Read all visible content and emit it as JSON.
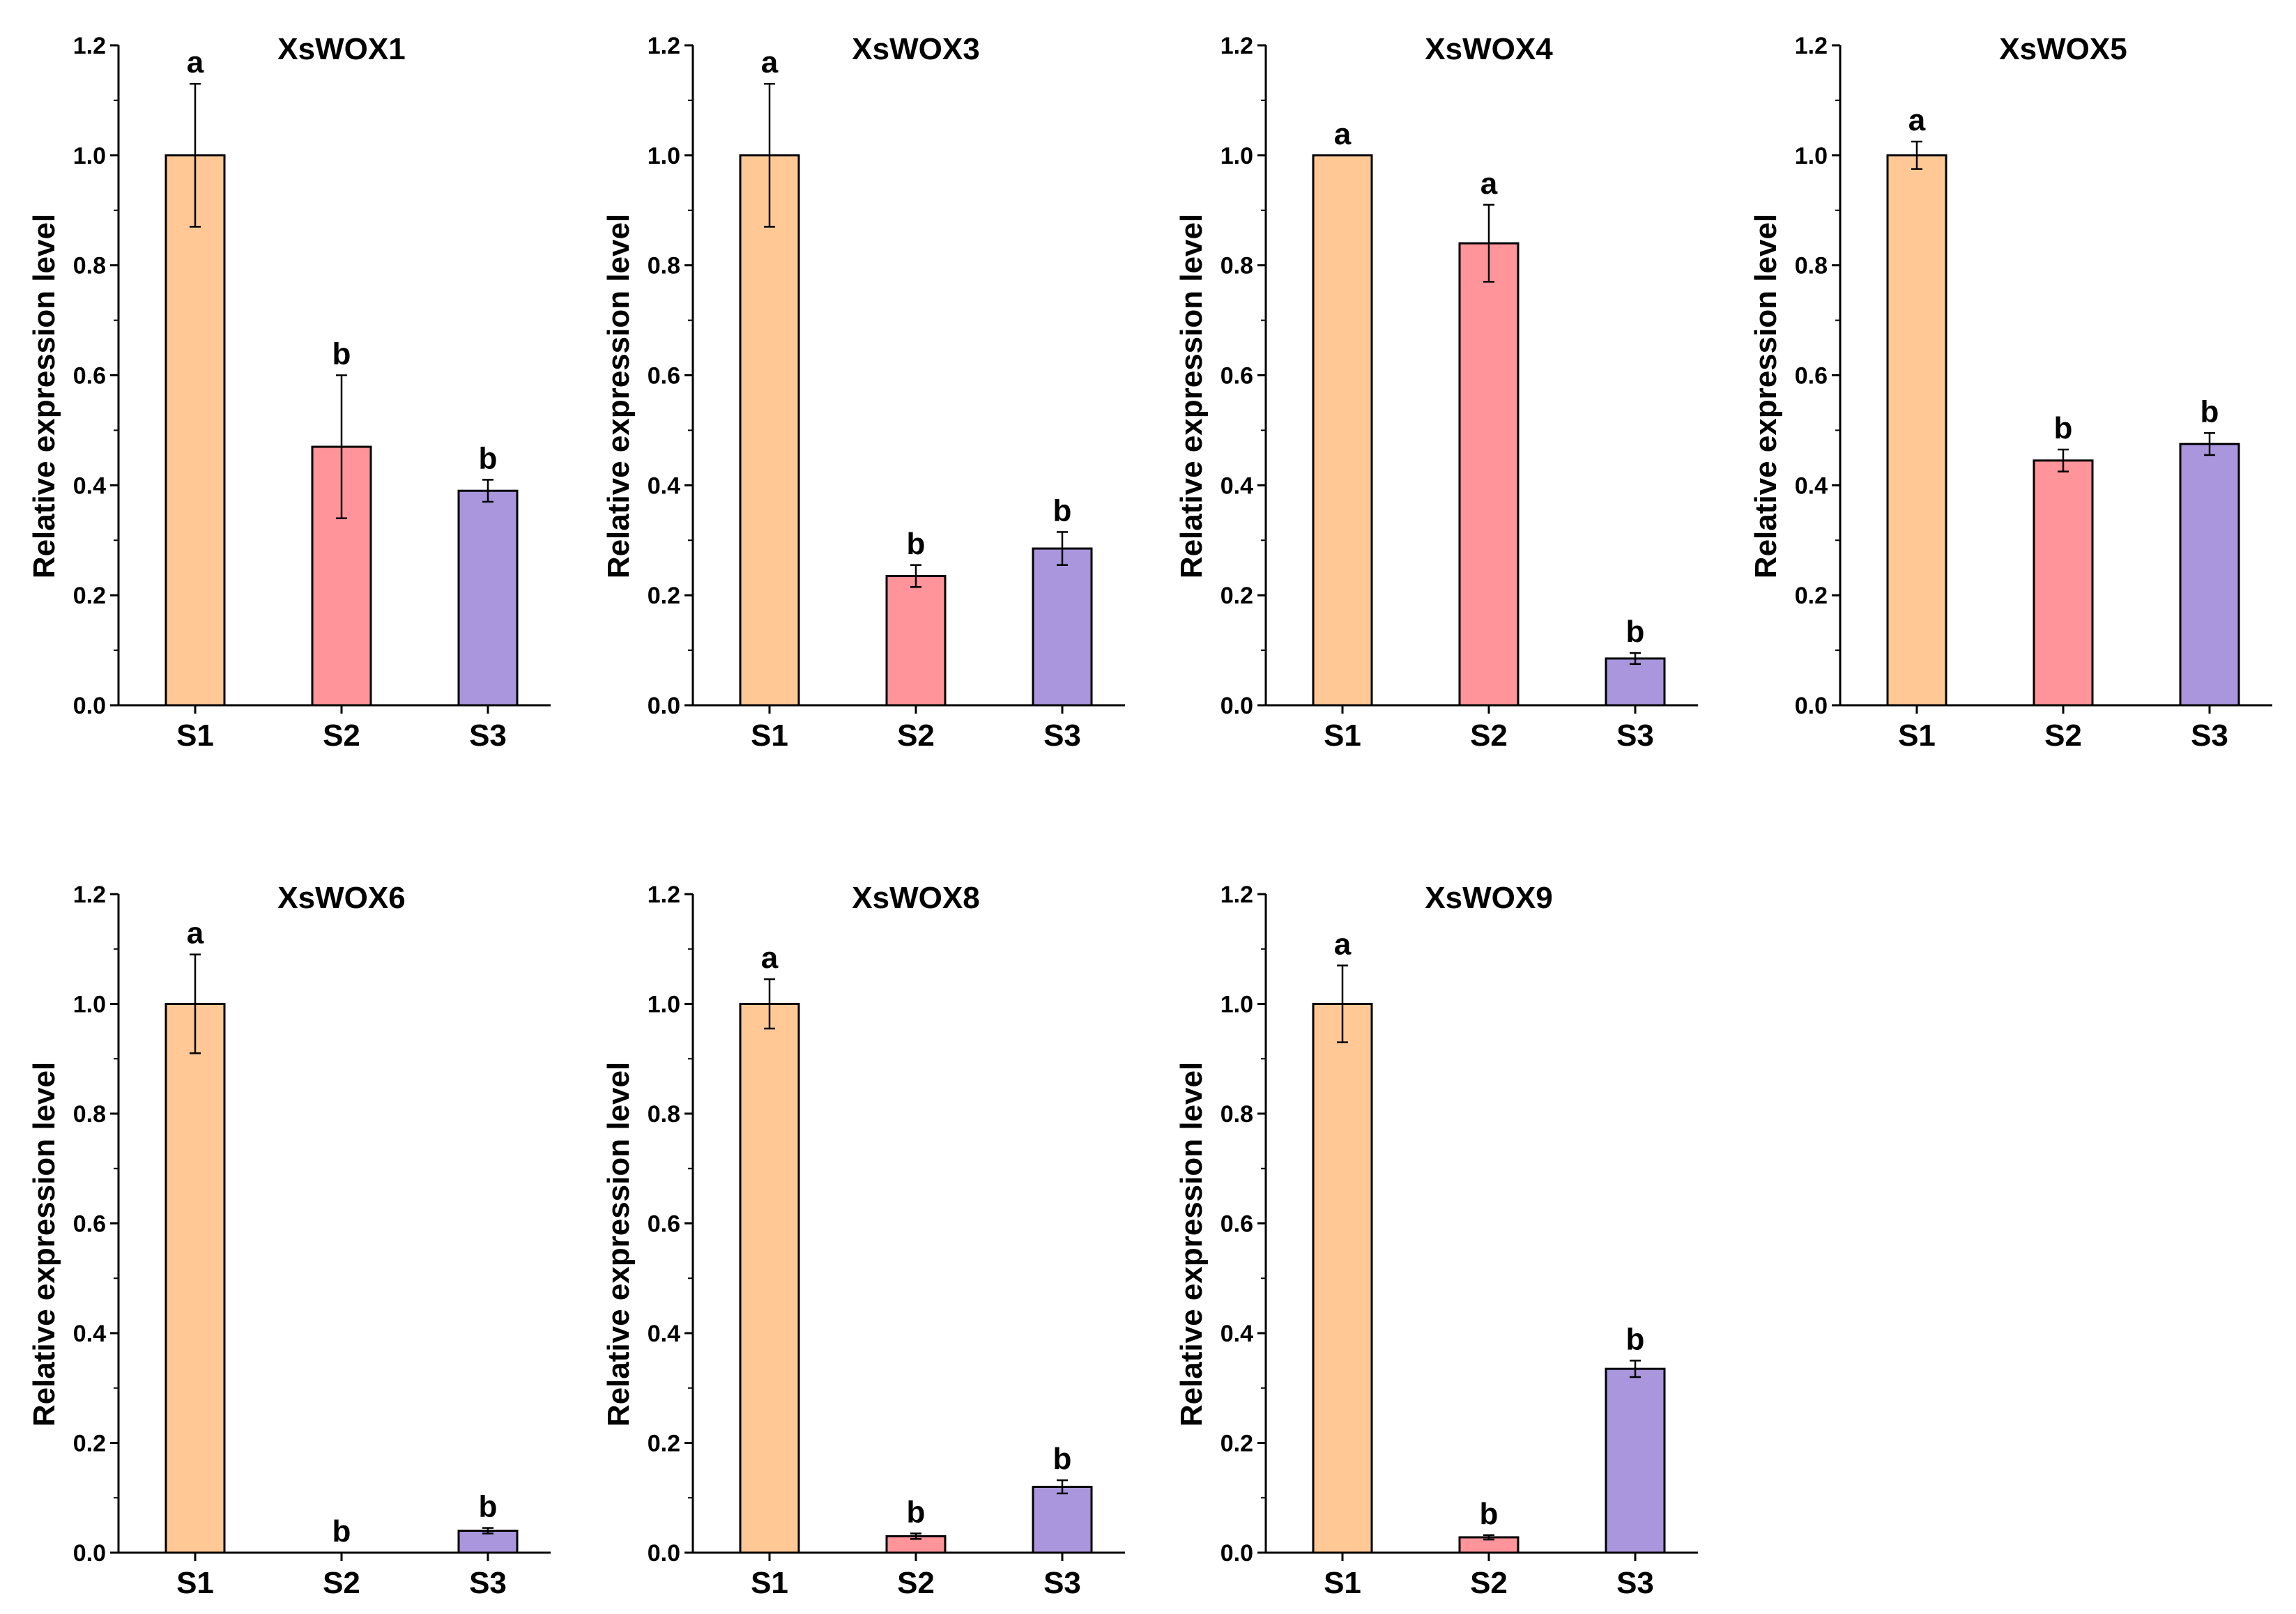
{
  "colors": {
    "S1": "#FFC895",
    "S2": "#FF949A",
    "S3": "#A996DC"
  },
  "chart_data": [
    {
      "type": "bar",
      "title": "XsWOX1",
      "ylabel": "Relative expression level",
      "xlabel": "",
      "categories": [
        "S1",
        "S2",
        "S3"
      ],
      "ylim": [
        0,
        1.2
      ],
      "yticks": [
        "0.0",
        "0.2",
        "0.4",
        "0.6",
        "0.8",
        "1.0",
        "1.2"
      ],
      "values": [
        1.0,
        0.47,
        0.39
      ],
      "errors": [
        0.13,
        0.13,
        0.02
      ],
      "letters": [
        "a",
        "b",
        "b"
      ]
    },
    {
      "type": "bar",
      "title": "XsWOX3",
      "ylabel": "Relative expression level",
      "xlabel": "",
      "categories": [
        "S1",
        "S2",
        "S3"
      ],
      "ylim": [
        0,
        1.2
      ],
      "yticks": [
        "0.0",
        "0.2",
        "0.4",
        "0.6",
        "0.8",
        "1.0",
        "1.2"
      ],
      "values": [
        1.0,
        0.235,
        0.285
      ],
      "errors": [
        0.13,
        0.02,
        0.03
      ],
      "letters": [
        "a",
        "b",
        "b"
      ]
    },
    {
      "type": "bar",
      "title": "XsWOX4",
      "ylabel": "Relative expression level",
      "xlabel": "",
      "categories": [
        "S1",
        "S2",
        "S3"
      ],
      "ylim": [
        0,
        1.2
      ],
      "yticks": [
        "0.0",
        "0.2",
        "0.4",
        "0.6",
        "0.8",
        "1.0",
        "1.2"
      ],
      "values": [
        1.0,
        0.84,
        0.085
      ],
      "errors": [
        0.0,
        0.07,
        0.01
      ],
      "letters": [
        "a",
        "a",
        "b"
      ]
    },
    {
      "type": "bar",
      "title": "XsWOX5",
      "ylabel": "Relative expression level",
      "xlabel": "",
      "categories": [
        "S1",
        "S2",
        "S3"
      ],
      "ylim": [
        0,
        1.2
      ],
      "yticks": [
        "0.0",
        "0.2",
        "0.4",
        "0.6",
        "0.8",
        "1.0",
        "1.2"
      ],
      "values": [
        1.0,
        0.445,
        0.475
      ],
      "errors": [
        0.025,
        0.02,
        0.02
      ],
      "letters": [
        "a",
        "b",
        "b"
      ]
    },
    {
      "type": "bar",
      "title": "XsWOX6",
      "ylabel": "Relative expression level",
      "xlabel": "",
      "categories": [
        "S1",
        "S2",
        "S3"
      ],
      "ylim": [
        0,
        1.2
      ],
      "yticks": [
        "0.0",
        "0.2",
        "0.4",
        "0.6",
        "0.8",
        "1.0",
        "1.2"
      ],
      "values": [
        1.0,
        0.0,
        0.04
      ],
      "errors": [
        0.09,
        0.0,
        0.005
      ],
      "letters": [
        "a",
        "b",
        "b"
      ]
    },
    {
      "type": "bar",
      "title": "XsWOX8",
      "ylabel": "Relative expression level",
      "xlabel": "",
      "categories": [
        "S1",
        "S2",
        "S3"
      ],
      "ylim": [
        0,
        1.2
      ],
      "yticks": [
        "0.0",
        "0.2",
        "0.4",
        "0.6",
        "0.8",
        "1.0",
        "1.2"
      ],
      "values": [
        1.0,
        0.03,
        0.12
      ],
      "errors": [
        0.045,
        0.005,
        0.012
      ],
      "letters": [
        "a",
        "b",
        "b"
      ]
    },
    {
      "type": "bar",
      "title": "XsWOX9",
      "ylabel": "Relative expression level",
      "xlabel": "",
      "categories": [
        "S1",
        "S2",
        "S3"
      ],
      "ylim": [
        0,
        1.2
      ],
      "yticks": [
        "0.0",
        "0.2",
        "0.4",
        "0.6",
        "0.8",
        "1.0",
        "1.2"
      ],
      "values": [
        1.0,
        0.028,
        0.335
      ],
      "errors": [
        0.07,
        0.004,
        0.015
      ],
      "letters": [
        "a",
        "b",
        "b"
      ]
    }
  ]
}
